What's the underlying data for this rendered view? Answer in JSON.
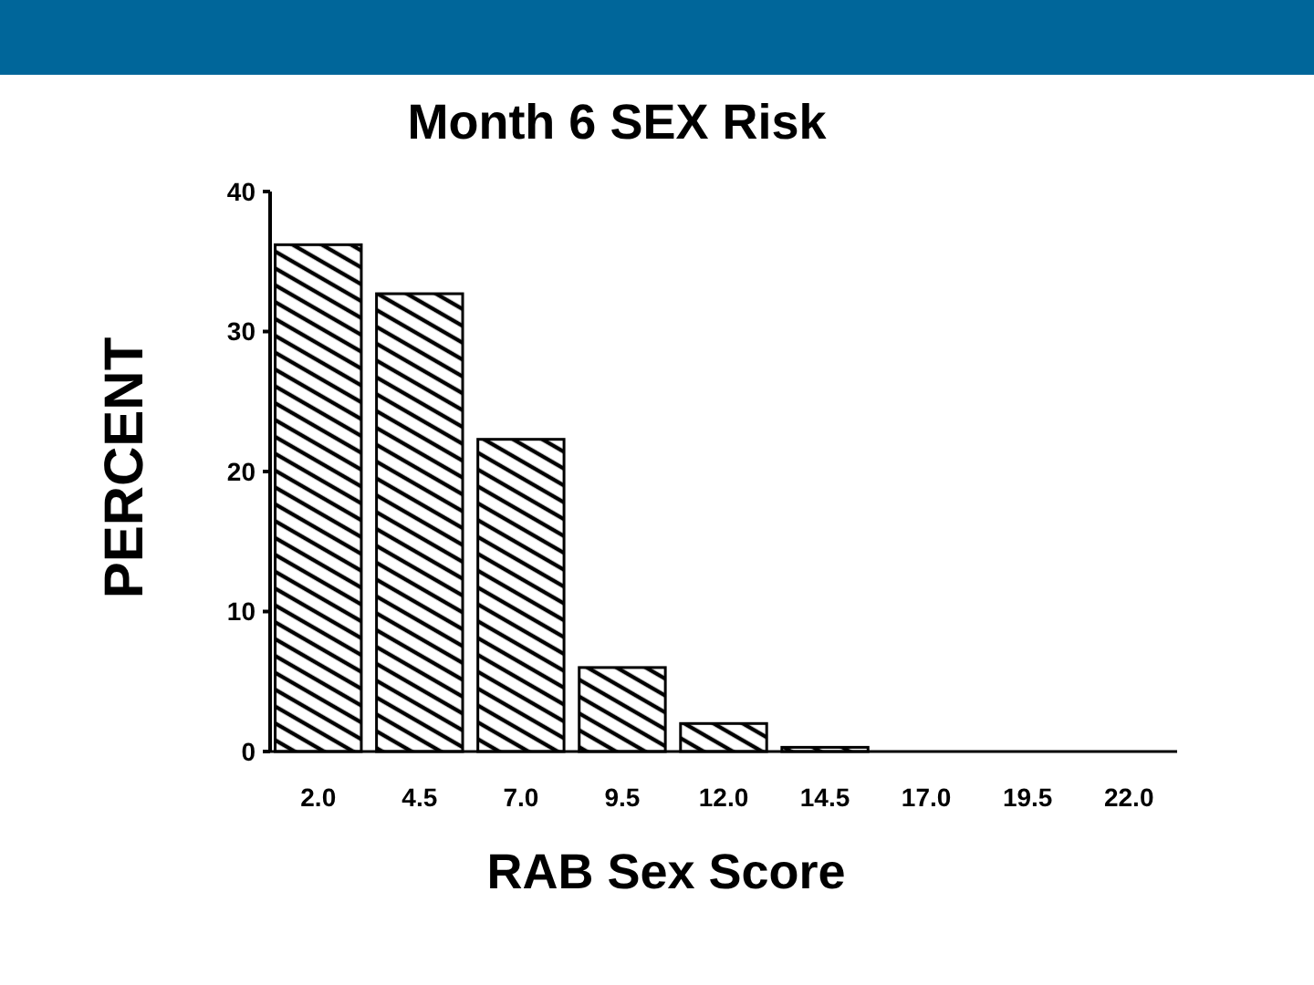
{
  "chart_data": {
    "type": "bar",
    "title": "Month 6 SEX Risk",
    "xlabel": "RAB Sex Score",
    "ylabel": "PERCENT",
    "categories": [
      "2.0",
      "4.5",
      "7.0",
      "9.5",
      "12.0",
      "14.5",
      "17.0",
      "19.5",
      "22.0"
    ],
    "values": [
      36.2,
      32.7,
      22.3,
      6.0,
      2.0,
      0.3,
      0,
      0,
      0
    ],
    "color": "#000000",
    "ylim": [
      0,
      40
    ],
    "yticks": [
      0,
      10,
      20,
      30,
      40
    ]
  }
}
